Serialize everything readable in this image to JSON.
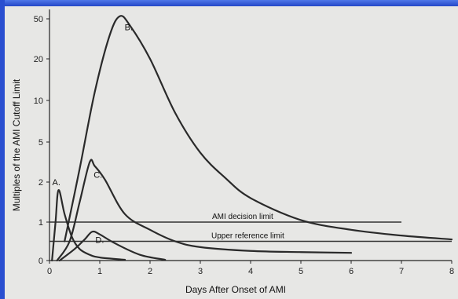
{
  "chart_data": {
    "type": "line",
    "title": "",
    "xlabel": "Days After Onset of AMI",
    "ylabel": "Multiples of the AMI Cutoff Limit",
    "x_ticks": [
      "0",
      "1",
      "2",
      "3",
      "4",
      "5",
      "6",
      "7",
      "8"
    ],
    "y_ticks": [
      "0",
      "1",
      "2",
      "5",
      "10",
      "20",
      "50"
    ],
    "xlim": [
      0,
      8
    ],
    "ylim": [
      0,
      50
    ],
    "grid": false,
    "series": [
      {
        "name": "A.",
        "x": [
          0.05,
          0.12,
          0.18,
          0.3,
          0.45,
          0.6,
          0.8,
          1.0,
          1.5
        ],
        "y": [
          0,
          1.0,
          1.8,
          1.2,
          0.6,
          0.3,
          0.15,
          0.08,
          0.02
        ]
      },
      {
        "name": "B.",
        "x": [
          0.3,
          0.6,
          0.9,
          1.2,
          1.4,
          1.6,
          2.0,
          2.5,
          3.0,
          3.5,
          4.0,
          5.0,
          6.0,
          7.0,
          8.0
        ],
        "y": [
          0.5,
          3,
          12,
          38,
          52,
          45,
          20,
          8.5,
          4.2,
          2.3,
          1.6,
          1.05,
          0.8,
          0.65,
          0.55
        ]
      },
      {
        "name": "C.",
        "x": [
          0.15,
          0.4,
          0.6,
          0.8,
          0.9,
          1.1,
          1.5,
          2.0,
          2.5,
          3.0,
          4.0,
          5.0,
          6.0
        ],
        "y": [
          0,
          0.5,
          1.5,
          3.5,
          3.2,
          2.2,
          1.2,
          0.8,
          0.5,
          0.35,
          0.25,
          0.22,
          0.2
        ]
      },
      {
        "name": "D.",
        "x": [
          0.2,
          0.5,
          0.7,
          0.85,
          1.0,
          1.3,
          1.8,
          2.3
        ],
        "y": [
          0,
          0.3,
          0.55,
          0.75,
          0.68,
          0.45,
          0.15,
          0.02
        ]
      }
    ],
    "reference_lines": [
      {
        "label": "AMI decision limit",
        "y": 1,
        "x_start": 0,
        "x_end": 7
      },
      {
        "label": "Upper reference limit",
        "y": 0.5,
        "x_start": 0,
        "x_end": 8
      }
    ]
  }
}
